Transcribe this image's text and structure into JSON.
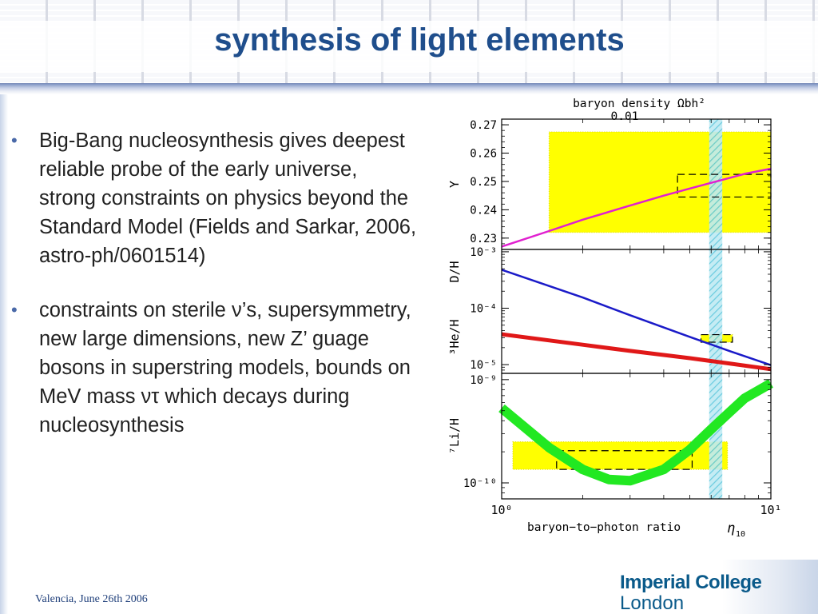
{
  "slide": {
    "title": "synthesis of light elements",
    "bullets": [
      {
        "text": " Big-Bang nucleosynthesis gives deepest reliable probe of the early universe, strong constraints on physics beyond the Standard Model (Fields and Sarkar, 2006, astro-ph/0601514)"
      },
      {
        "text": " constraints on sterile ν’s, supersymmetry, new large dimensions, new Z’ guage bosons in superstring models, bounds on MeV mass ντ which decays during nucleosynthesis"
      }
    ],
    "bullet_glyph": "•",
    "footer": "Valencia, June 26th 2006",
    "logo": {
      "line1": "Imperial College",
      "line2": "London"
    }
  },
  "chart_data": {
    "type": "line",
    "x_scale": "log",
    "xlim": [
      1,
      10
    ],
    "xlabel": "baryon−to−photon ratio",
    "xlabel_symbol": "η",
    "xlabel_subscript": "10",
    "x_tick_labels": [
      "10⁰",
      "10¹"
    ],
    "top_label": "baryon density Ωbh²",
    "top_tick_label": "0.01",
    "vertical_band": {
      "x": [
        5.9,
        6.6
      ],
      "color": "#7fd3e3"
    },
    "panels": [
      {
        "ylabel": "Y",
        "y_scale": "linear",
        "ylim": [
          0.226,
          0.272
        ],
        "y_tick_labels": [
          "0.27",
          "0.26",
          "0.25",
          "0.24",
          "0.23"
        ],
        "y_ticks": [
          0.27,
          0.26,
          0.25,
          0.24,
          0.23
        ],
        "series": [
          {
            "color": "#e020d0",
            "width": 2.5,
            "points": [
              [
                1,
                0.227
              ],
              [
                1.5,
                0.2325
              ],
              [
                2,
                0.2365
              ],
              [
                3,
                0.2415
              ],
              [
                4,
                0.245
              ],
              [
                5,
                0.2475
              ],
              [
                6,
                0.2495
              ],
              [
                7,
                0.2512
              ],
              [
                8,
                0.2527
              ],
              [
                10,
                0.2545
              ]
            ]
          }
        ],
        "boxes": [
          {
            "kind": "fill",
            "x": [
              1.5,
              10
            ],
            "y": [
              0.232,
              0.2675
            ],
            "color": "#ffff00"
          },
          {
            "kind": "dashed",
            "x": [
              4.5,
              10
            ],
            "y": [
              0.2445,
              0.2525
            ],
            "color": "#000000"
          }
        ]
      },
      {
        "ylabel": "D/H",
        "ylabel2": "³He/H",
        "y_scale": "log",
        "ylim": [
          7e-06,
          0.0011
        ],
        "y_tick_labels": [
          "10⁻³",
          "10⁻⁴",
          "10⁻⁵"
        ],
        "y_ticks": [
          0.001,
          0.0001,
          1e-05
        ],
        "series": [
          {
            "name": "D/H",
            "color": "#1a1ac8",
            "width": 2.5,
            "points": [
              [
                1,
                0.00048
              ],
              [
                2,
                0.000155
              ],
              [
                3,
                7.5e-05
              ],
              [
                5,
                3.1e-05
              ],
              [
                7,
                1.75e-05
              ],
              [
                10,
                9.8e-06
              ]
            ]
          },
          {
            "name": "3He/H",
            "color": "#e01818",
            "width": 5,
            "points": [
              [
                1,
                3.45e-05
              ],
              [
                2,
                2.25e-05
              ],
              [
                3,
                1.75e-05
              ],
              [
                5,
                1.3e-05
              ],
              [
                7,
                1.05e-05
              ],
              [
                10,
                8.3e-06
              ]
            ]
          }
        ],
        "boxes": [
          {
            "kind": "fill",
            "x": [
              5.5,
              7.2
            ],
            "y": [
              2.5e-05,
              3.4e-05
            ],
            "color": "#ffff00"
          },
          {
            "kind": "dashed",
            "x": [
              5.5,
              7.2
            ],
            "y": [
              2.5e-05,
              3.4e-05
            ],
            "color": "#000000"
          }
        ]
      },
      {
        "ylabel": "⁷Li/H",
        "y_scale": "log",
        "ylim": [
          7e-11,
          1.15e-09
        ],
        "y_tick_labels": [
          "10⁻⁹",
          "10⁻¹⁰"
        ],
        "y_ticks": [
          1e-09,
          1e-10
        ],
        "series": [
          {
            "name": "7Li/H",
            "color": "#22e822",
            "width": 12,
            "points": [
              [
                1,
                5.3e-10
              ],
              [
                1.5,
                2.2e-10
              ],
              [
                2,
                1.35e-10
              ],
              [
                2.5,
                1.08e-10
              ],
              [
                3,
                1.05e-10
              ],
              [
                4,
                1.35e-10
              ],
              [
                5,
                2.1e-10
              ],
              [
                6,
                3.3e-10
              ],
              [
                7,
                4.8e-10
              ],
              [
                8,
                6.6e-10
              ],
              [
                10,
                9.2e-10
              ]
            ]
          }
        ],
        "boxes": [
          {
            "kind": "fill",
            "x": [
              1.1,
              6.9
            ],
            "y": [
              1.35e-10,
              2.5e-10
            ],
            "color": "#ffff00"
          },
          {
            "kind": "dashed",
            "x": [
              1.6,
              5.1
            ],
            "y": [
              1.35e-10,
              2.05e-10
            ],
            "color": "#000000"
          }
        ]
      }
    ]
  }
}
